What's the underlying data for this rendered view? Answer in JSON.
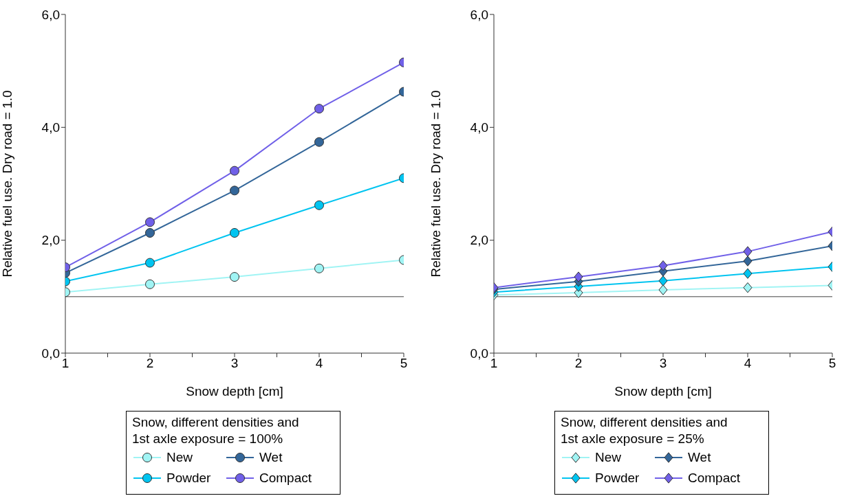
{
  "chart_data": [
    {
      "type": "line",
      "xlabel": "Snow depth [cm]",
      "ylabel": "Relative fuel use. Dry road = 1.0",
      "legend_title": "Snow, different densities and\n1st axle exposure = 100%",
      "legend": "bottom",
      "marker": "circle",
      "line_style": "solid",
      "x": [
        1,
        2,
        3,
        4,
        5
      ],
      "xlim": [
        1,
        5
      ],
      "xticks": [
        1,
        {
          "value": 1.5,
          "label": null
        },
        2,
        {
          "value": 2.5,
          "label": null
        },
        3,
        {
          "value": 3.5,
          "label": null
        },
        4,
        {
          "value": 4.5,
          "label": null
        },
        5
      ],
      "ylim": [
        0,
        6
      ],
      "yticks": [
        {
          "value": 0,
          "label": "0,0"
        },
        {
          "value": 2,
          "label": "2,0"
        },
        {
          "value": 4,
          "label": "4,0"
        },
        {
          "value": 6,
          "label": "6,0"
        }
      ],
      "ref_lines": [
        {
          "axis": "y",
          "value": 1,
          "label": null,
          "color": "#808080"
        }
      ],
      "series": [
        {
          "name": "New",
          "color": "#a0f4f4",
          "values": [
            1.08,
            1.22,
            1.35,
            1.5,
            1.65
          ]
        },
        {
          "name": "Powder",
          "color": "#00c4f0",
          "values": [
            1.27,
            1.6,
            2.13,
            2.62,
            3.1
          ]
        },
        {
          "name": "Wet",
          "color": "#336699",
          "values": [
            1.42,
            2.13,
            2.88,
            3.74,
            4.63
          ]
        },
        {
          "name": "Compact",
          "color": "#7060e8",
          "values": [
            1.52,
            2.32,
            3.23,
            4.33,
            5.15
          ]
        }
      ]
    },
    {
      "type": "line",
      "xlabel": "Snow depth [cm]",
      "ylabel": "Relative fuel use. Dry road = 1.0",
      "legend_title": "Snow, different densities and\n1st axle exposure = 25%",
      "legend": "bottom",
      "marker": "diamond",
      "line_style": "solid",
      "x": [
        1,
        2,
        3,
        4,
        5
      ],
      "xlim": [
        1,
        5
      ],
      "xticks": [
        1,
        {
          "value": 1.5,
          "label": null
        },
        2,
        {
          "value": 2.5,
          "label": null
        },
        3,
        {
          "value": 3.5,
          "label": null
        },
        4,
        {
          "value": 4.5,
          "label": null
        },
        5
      ],
      "ylim": [
        0,
        6
      ],
      "yticks": [
        {
          "value": 0,
          "label": "0,0"
        },
        {
          "value": 2,
          "label": "2,0"
        },
        {
          "value": 4,
          "label": "4,0"
        },
        {
          "value": 6,
          "label": "6,0"
        }
      ],
      "ref_lines": [
        {
          "axis": "y",
          "value": 1,
          "label": null,
          "color": "#808080"
        }
      ],
      "series": [
        {
          "name": "New",
          "color": "#a0f4f4",
          "values": [
            1.03,
            1.07,
            1.12,
            1.16,
            1.2
          ]
        },
        {
          "name": "Powder",
          "color": "#00c4f0",
          "values": [
            1.08,
            1.18,
            1.28,
            1.41,
            1.53
          ]
        },
        {
          "name": "Wet",
          "color": "#336699",
          "values": [
            1.13,
            1.27,
            1.45,
            1.63,
            1.9
          ]
        },
        {
          "name": "Compact",
          "color": "#7060e8",
          "values": [
            1.16,
            1.35,
            1.55,
            1.8,
            2.15
          ]
        }
      ]
    }
  ]
}
